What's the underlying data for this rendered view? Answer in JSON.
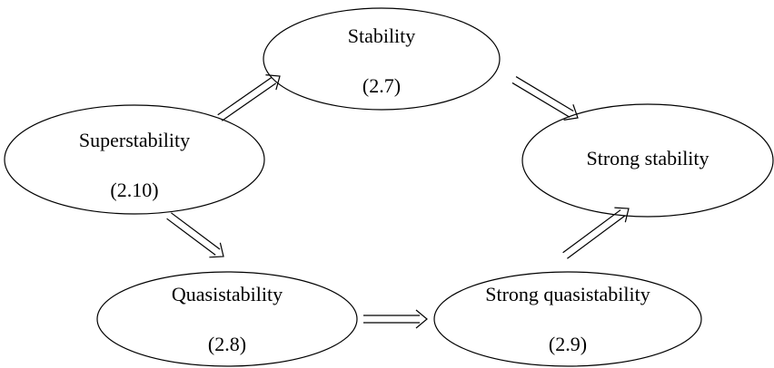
{
  "nodes": [
    {
      "label": "Stability",
      "ref": "(2.7)"
    },
    {
      "label": "Superstability",
      "ref": "(2.10)"
    },
    {
      "label": "Strong stability"
    },
    {
      "label": "Quasistability",
      "ref": "(2.8)"
    },
    {
      "label": "Strong quasistability",
      "ref": "(2.9)"
    }
  ]
}
